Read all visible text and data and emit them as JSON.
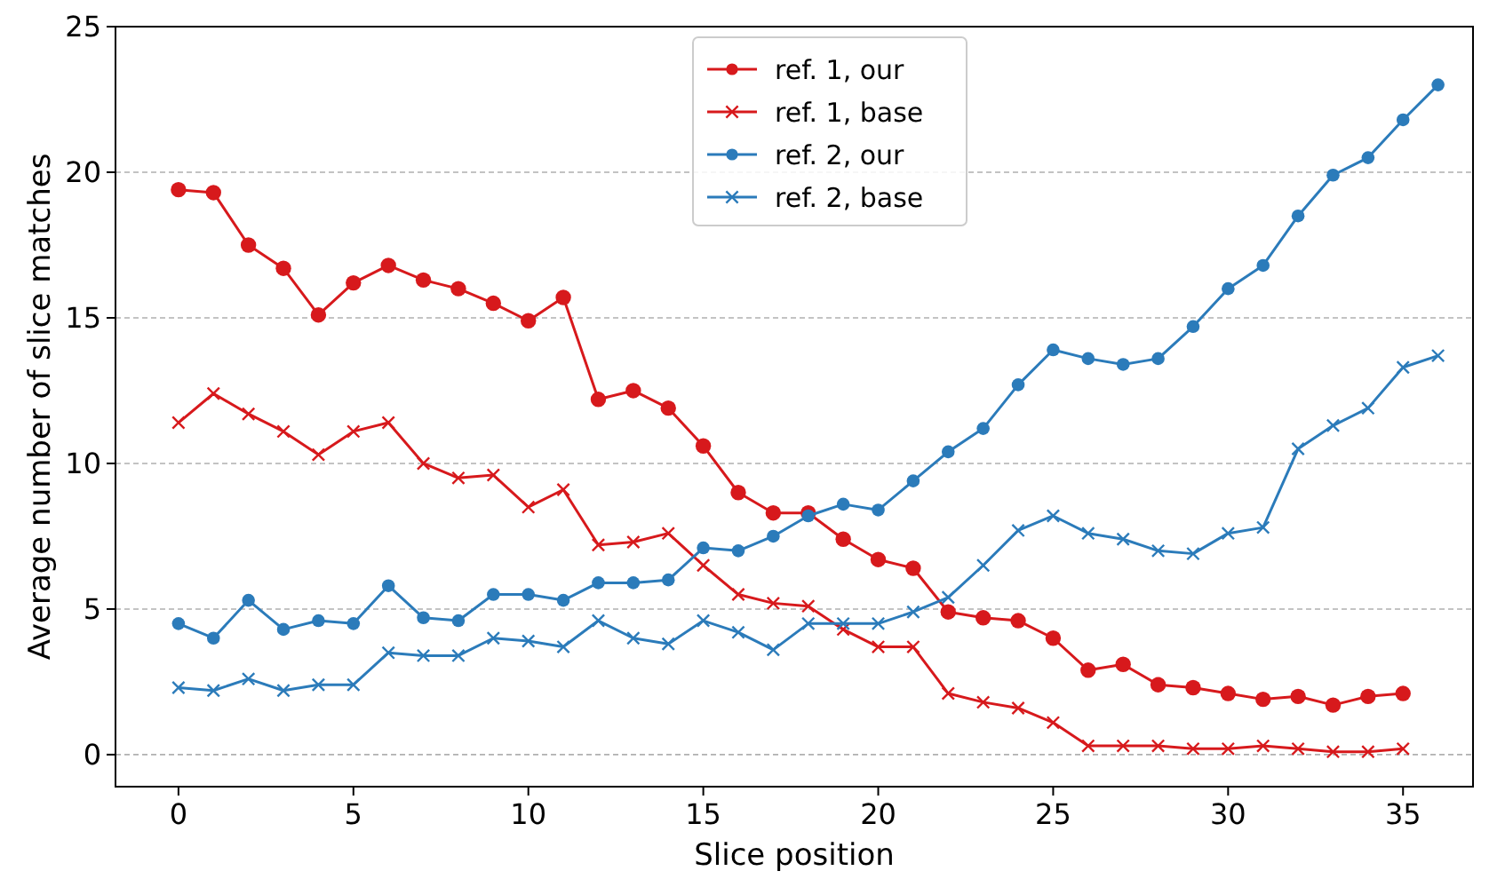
{
  "chart_data": {
    "type": "line",
    "xlabel": "Slice position",
    "ylabel": "Average number of slice matches",
    "xlim": [
      -1.8,
      37
    ],
    "ylim": [
      -1.1,
      25
    ],
    "xticks": [
      0,
      5,
      10,
      15,
      20,
      25,
      30,
      35
    ],
    "yticks": [
      0,
      5,
      10,
      15,
      20,
      25
    ],
    "grid": "y",
    "legend": "top",
    "line_style": "solid",
    "series": [
      {
        "name": "ref. 1, our",
        "color": "#d7191c",
        "marker": "circle",
        "x": [
          0,
          1,
          2,
          3,
          4,
          5,
          6,
          7,
          8,
          9,
          10,
          11,
          12,
          13,
          14,
          15,
          16,
          17,
          18,
          19,
          20,
          21,
          22,
          23,
          24,
          25,
          26,
          27,
          28,
          29,
          30,
          31,
          32,
          33,
          34,
          35
        ],
        "values": [
          19.4,
          19.3,
          17.5,
          16.7,
          15.1,
          16.2,
          16.8,
          16.3,
          16.0,
          15.5,
          14.9,
          15.7,
          12.2,
          12.5,
          11.9,
          10.6,
          9.0,
          8.3,
          8.3,
          7.4,
          6.7,
          6.4,
          4.9,
          4.7,
          4.6,
          4.0,
          2.9,
          3.1,
          2.4,
          2.3,
          2.1,
          1.9,
          2.0,
          1.7,
          2.0,
          2.1
        ]
      },
      {
        "name": "ref. 1, base",
        "color": "#d7191c",
        "marker": "cross",
        "x": [
          0,
          1,
          2,
          3,
          4,
          5,
          6,
          7,
          8,
          9,
          10,
          11,
          12,
          13,
          14,
          15,
          16,
          17,
          18,
          19,
          20,
          21,
          22,
          23,
          24,
          25,
          26,
          27,
          28,
          29,
          30,
          31,
          32,
          33,
          34,
          35
        ],
        "values": [
          11.4,
          12.4,
          11.7,
          11.1,
          10.3,
          11.1,
          11.4,
          10.0,
          9.5,
          9.6,
          8.5,
          9.1,
          7.2,
          7.3,
          7.6,
          6.5,
          5.5,
          5.2,
          5.1,
          4.3,
          3.7,
          3.7,
          2.1,
          1.8,
          1.6,
          1.1,
          0.3,
          0.3,
          0.3,
          0.2,
          0.2,
          0.3,
          0.2,
          0.1,
          0.1,
          0.2
        ]
      },
      {
        "name": "ref. 2, our",
        "color": "#2b7bba",
        "marker": "circle",
        "x": [
          0,
          1,
          2,
          3,
          4,
          5,
          6,
          7,
          8,
          9,
          10,
          11,
          12,
          13,
          14,
          15,
          16,
          17,
          18,
          19,
          20,
          21,
          22,
          23,
          24,
          25,
          26,
          27,
          28,
          29,
          30,
          31,
          32,
          33,
          34,
          35,
          36
        ],
        "values": [
          4.5,
          4.0,
          5.3,
          4.3,
          4.6,
          4.5,
          5.8,
          4.7,
          4.6,
          5.5,
          5.5,
          5.3,
          5.9,
          5.9,
          6.0,
          7.1,
          7.0,
          7.5,
          8.2,
          8.6,
          8.4,
          9.4,
          10.4,
          11.2,
          12.7,
          13.9,
          13.6,
          13.4,
          13.6,
          14.7,
          16.0,
          16.8,
          18.5,
          19.9,
          20.5,
          21.8,
          23.0
        ]
      },
      {
        "name": "ref. 2, base",
        "color": "#2b7bba",
        "marker": "cross",
        "x": [
          0,
          1,
          2,
          3,
          4,
          5,
          6,
          7,
          8,
          9,
          10,
          11,
          12,
          13,
          14,
          15,
          16,
          17,
          18,
          19,
          20,
          21,
          22,
          23,
          24,
          25,
          26,
          27,
          28,
          29,
          30,
          31,
          32,
          33,
          34,
          35,
          36
        ],
        "values": [
          2.3,
          2.2,
          2.6,
          2.2,
          2.4,
          2.4,
          3.5,
          3.4,
          3.4,
          4.0,
          3.9,
          3.7,
          4.6,
          4.0,
          3.8,
          4.6,
          4.2,
          3.6,
          4.5,
          4.5,
          4.5,
          4.9,
          5.4,
          6.5,
          7.7,
          8.2,
          7.6,
          7.4,
          7.0,
          6.9,
          7.6,
          7.8,
          10.5,
          11.3,
          11.9,
          13.3,
          13.7
        ]
      }
    ]
  }
}
